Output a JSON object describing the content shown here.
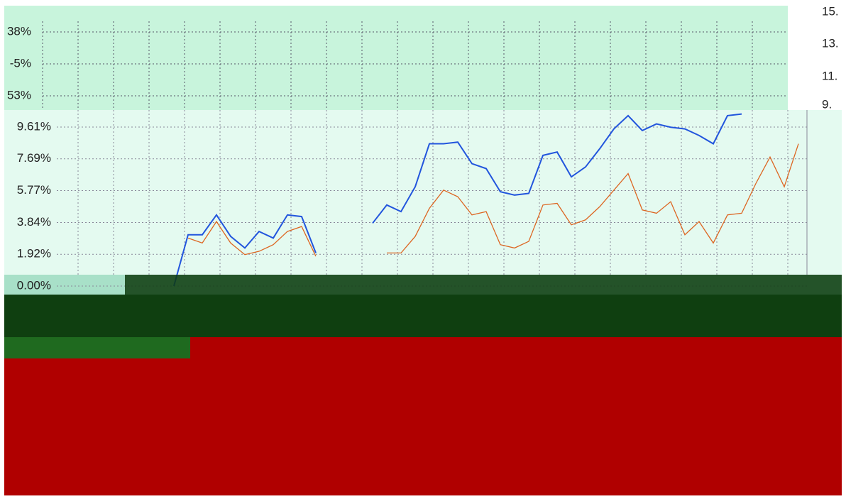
{
  "top_panel": {
    "left_labels": [
      "38%",
      "-5%",
      "53%"
    ],
    "right_labels": [
      "15.",
      "13.",
      "11.",
      "9."
    ]
  },
  "chart_data": {
    "type": "line",
    "categories": [
      null,
      null,
      null,
      null,
      null,
      null,
      null,
      null,
      null,
      null,
      null,
      null,
      null,
      null,
      null,
      null,
      null,
      null,
      null,
      null,
      null,
      null,
      null,
      null,
      null,
      null,
      null,
      null,
      null,
      null,
      null,
      null,
      null,
      null,
      null,
      null,
      null,
      null,
      null,
      null,
      null,
      null,
      null,
      null,
      null
    ],
    "series": [
      {
        "color": "#2255dd",
        "values": [
          0,
          3.1,
          3.1,
          4.3,
          3.0,
          2.3,
          3.3,
          2.9,
          4.3,
          4.2,
          2.0,
          null,
          null,
          null,
          3.8,
          4.9,
          4.5,
          6.0,
          8.6,
          8.6,
          8.7,
          7.4,
          7.1,
          5.7,
          5.5,
          5.6,
          7.9,
          8.1,
          6.6,
          7.2,
          8.3,
          9.5,
          10.3,
          9.4,
          9.8,
          9.6,
          9.5,
          9.1,
          8.6,
          10.3,
          10.4,
          null,
          null,
          null,
          null
        ]
      },
      {
        "color": "#dd6622",
        "values": [
          null,
          2.9,
          2.6,
          3.9,
          2.6,
          1.9,
          2.1,
          2.5,
          3.3,
          3.6,
          1.8,
          null,
          null,
          null,
          null,
          2.0,
          2.0,
          3.0,
          4.7,
          5.8,
          5.4,
          4.3,
          4.5,
          2.5,
          2.3,
          2.7,
          4.9,
          5.0,
          3.7,
          4.0,
          4.8,
          5.8,
          6.8,
          4.6,
          4.4,
          5.1,
          3.1,
          3.9,
          2.6,
          4.3,
          4.4,
          6.2,
          7.8,
          6.0,
          8.6
        ]
      }
    ],
    "ylim": [
      0,
      10.64
    ],
    "yticks": [
      {
        "value": 0,
        "label": "0.00%"
      },
      {
        "value": 1.92,
        "label": "1.92%"
      },
      {
        "value": 3.84,
        "label": "3.84%"
      },
      {
        "value": 5.77,
        "label": "5.77%"
      },
      {
        "value": 7.69,
        "label": "7.69%"
      },
      {
        "value": 9.61,
        "label": "9.61%"
      }
    ],
    "grid": true
  }
}
